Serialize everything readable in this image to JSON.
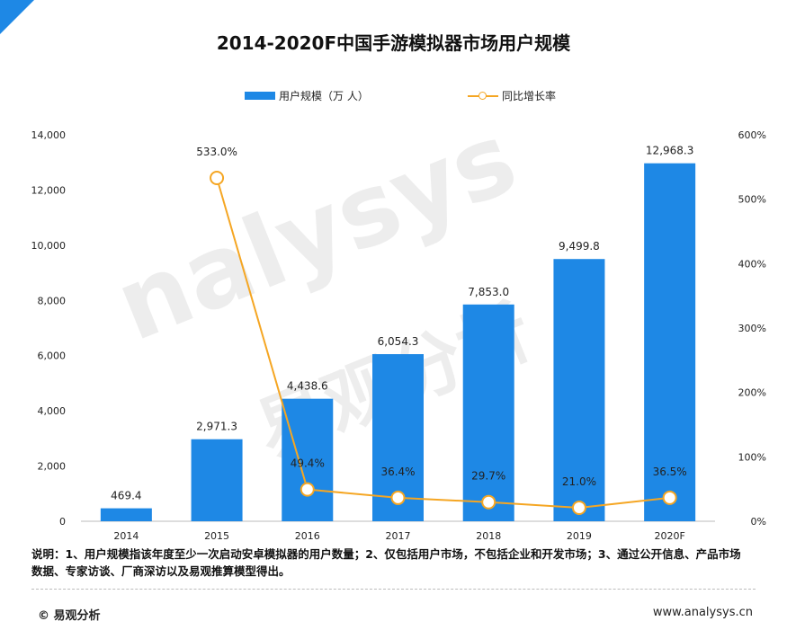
{
  "title": "2014-2020F中国手游模拟器市场用户规模",
  "legend": {
    "bar_label": "用户规模（万 人）",
    "line_label": "同比增长率"
  },
  "watermark": {
    "latin": "nalysys",
    "chinese": "易观分析"
  },
  "colors": {
    "bar": "#1e88e5",
    "line": "#f5a623",
    "accent": "#1e88e5"
  },
  "chart_data": {
    "type": "bar",
    "categories": [
      "2014",
      "2015",
      "2016",
      "2017",
      "2018",
      "2019",
      "2020F"
    ],
    "series": [
      {
        "name": "用户规模（万 人）",
        "type": "bar",
        "axis": "left",
        "values": [
          469.4,
          2971.3,
          4438.6,
          6054.3,
          7853.0,
          9499.8,
          12968.3
        ],
        "labels": [
          "469.4",
          "2,971.3",
          "4,438.6",
          "6,054.3",
          "7,853.0",
          "9,499.8",
          "12,968.3"
        ]
      },
      {
        "name": "同比增长率",
        "type": "line",
        "axis": "right",
        "values": [
          null,
          533.0,
          49.4,
          36.4,
          29.7,
          21.0,
          36.5
        ],
        "labels": [
          "",
          "533.0%",
          "49.4%",
          "36.4%",
          "29.7%",
          "21.0%",
          "36.5%"
        ]
      }
    ],
    "y_left": {
      "min": 0,
      "max": 14000,
      "ticks": [
        "0",
        "2,000",
        "4,000",
        "6,000",
        "8,000",
        "10,000",
        "12,000",
        "14,000"
      ]
    },
    "y_right": {
      "min": 0,
      "max": 600,
      "ticks": [
        "0%",
        "100%",
        "200%",
        "300%",
        "400%",
        "500%",
        "600%"
      ]
    },
    "grid": false,
    "legend_position": "top"
  },
  "note": "说明：1、用户规模指该年度至少一次启动安卓模拟器的用户数量；2、仅包括用户市场，不包括企业和开发市场；3、通过公开信息、产品市场数据、专家访谈、厂商深访以及易观推算模型得出。",
  "footer": {
    "left": "© 易观分析",
    "right": "www.analysys.cn"
  }
}
